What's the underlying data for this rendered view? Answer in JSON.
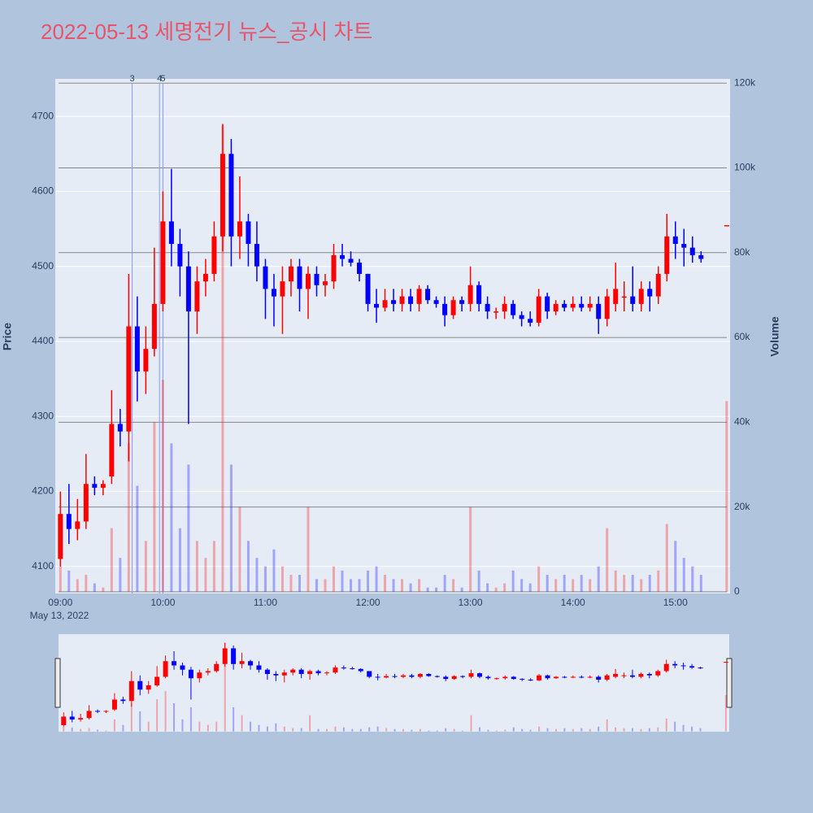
{
  "chart_data": {
    "type": "candlestick",
    "title": "2022-05-13 세명전기 뉴스_공시 차트",
    "x": [
      "09:00",
      "09:05",
      "09:10",
      "09:15",
      "09:20",
      "09:25",
      "09:30",
      "09:35",
      "09:40",
      "09:45",
      "09:50",
      "09:55",
      "10:00",
      "10:05",
      "10:10",
      "10:15",
      "10:20",
      "10:25",
      "10:30",
      "10:35",
      "10:40",
      "10:45",
      "10:50",
      "10:55",
      "11:00",
      "11:05",
      "11:10",
      "11:15",
      "11:20",
      "11:25",
      "11:30",
      "11:35",
      "11:40",
      "11:45",
      "11:50",
      "11:55",
      "12:00",
      "12:05",
      "12:10",
      "12:15",
      "12:20",
      "12:25",
      "12:30",
      "12:35",
      "12:40",
      "12:45",
      "12:50",
      "12:55",
      "13:00",
      "13:05",
      "13:10",
      "13:15",
      "13:20",
      "13:25",
      "13:30",
      "13:35",
      "13:40",
      "13:45",
      "13:50",
      "13:55",
      "14:00",
      "14:05",
      "14:10",
      "14:15",
      "14:20",
      "14:25",
      "14:30",
      "14:35",
      "14:40",
      "14:45",
      "14:50",
      "14:55",
      "15:00",
      "15:05",
      "15:10",
      "15:15",
      "15:30"
    ],
    "open": [
      4110,
      4170,
      4150,
      4160,
      4210,
      4205,
      4220,
      4290,
      4280,
      4420,
      4360,
      4390,
      4450,
      4560,
      4530,
      4500,
      4440,
      4480,
      4490,
      4540,
      4650,
      4540,
      4560,
      4530,
      4500,
      4470,
      4460,
      4480,
      4500,
      4470,
      4490,
      4475,
      4480,
      4515,
      4510,
      4505,
      4490,
      4450,
      4445,
      4455,
      4450,
      4460,
      4450,
      4470,
      4455,
      4450,
      4435,
      4455,
      4450,
      4475,
      4450,
      4440,
      4440,
      4450,
      4435,
      4430,
      4425,
      4460,
      4440,
      4450,
      4445,
      4450,
      4445,
      4450,
      4430,
      4450,
      4460,
      4460,
      4450,
      4470,
      4460,
      4490,
      4540,
      4530,
      4525,
      4515,
      4555
    ],
    "high": [
      4200,
      4210,
      4190,
      4250,
      4220,
      4215,
      4335,
      4310,
      4490,
      4460,
      4420,
      4525,
      4600,
      4630,
      4550,
      4520,
      4500,
      4510,
      4560,
      4690,
      4670,
      4620,
      4570,
      4560,
      4510,
      4490,
      4500,
      4510,
      4510,
      4500,
      4500,
      4490,
      4530,
      4530,
      4520,
      4510,
      4490,
      4470,
      4470,
      4470,
      4470,
      4470,
      4475,
      4475,
      4460,
      4460,
      4460,
      4460,
      4500,
      4480,
      4460,
      4445,
      4460,
      4455,
      4440,
      4440,
      4470,
      4465,
      4455,
      4455,
      4460,
      4460,
      4460,
      4460,
      4470,
      4505,
      4480,
      4500,
      4480,
      4480,
      4500,
      4570,
      4560,
      4550,
      4540,
      4520,
      4555
    ],
    "low": [
      4100,
      4130,
      4135,
      4150,
      4195,
      4195,
      4210,
      4260,
      4240,
      4320,
      4330,
      4380,
      4440,
      4500,
      4460,
      4290,
      4410,
      4460,
      4480,
      4520,
      4500,
      4510,
      4500,
      4480,
      4430,
      4420,
      4410,
      4460,
      4440,
      4430,
      4460,
      4460,
      4470,
      4500,
      4500,
      4480,
      4440,
      4425,
      4440,
      4440,
      4440,
      4440,
      4440,
      4450,
      4445,
      4420,
      4430,
      4440,
      4440,
      4440,
      4430,
      4430,
      4430,
      4430,
      4420,
      4420,
      4420,
      4430,
      4435,
      4440,
      4440,
      4440,
      4440,
      4410,
      4420,
      4440,
      4440,
      4440,
      4440,
      4440,
      4450,
      4480,
      4510,
      4500,
      4505,
      4505,
      4555
    ],
    "close": [
      4170,
      4150,
      4160,
      4210,
      4205,
      4210,
      4290,
      4280,
      4420,
      4360,
      4390,
      4450,
      4560,
      4530,
      4500,
      4440,
      4480,
      4490,
      4540,
      4650,
      4540,
      4560,
      4530,
      4500,
      4470,
      4460,
      4480,
      4500,
      4470,
      4490,
      4475,
      4480,
      4515,
      4510,
      4505,
      4490,
      4450,
      4445,
      4455,
      4450,
      4460,
      4450,
      4470,
      4455,
      4450,
      4435,
      4455,
      4450,
      4475,
      4450,
      4440,
      4440,
      4450,
      4435,
      4430,
      4425,
      4460,
      4440,
      4450,
      4445,
      4450,
      4445,
      4450,
      4430,
      4460,
      4470,
      4460,
      4450,
      4470,
      4460,
      4490,
      4540,
      4530,
      4525,
      4515,
      4510,
      4555
    ],
    "volume": [
      6000,
      5000,
      3000,
      4000,
      2000,
      1000,
      15000,
      8000,
      35000,
      25000,
      12000,
      40000,
      50000,
      35000,
      15000,
      30000,
      12000,
      8000,
      12000,
      110000,
      30000,
      20000,
      12000,
      8000,
      6000,
      10000,
      6000,
      4000,
      4000,
      20000,
      3000,
      3000,
      6000,
      5000,
      3000,
      3000,
      5000,
      6000,
      4000,
      3000,
      3000,
      2000,
      3000,
      1000,
      1000,
      4000,
      3000,
      1000,
      20000,
      5000,
      2000,
      1000,
      2000,
      5000,
      3000,
      2000,
      6000,
      4000,
      3000,
      4000,
      3000,
      4000,
      3000,
      6000,
      15000,
      5000,
      4000,
      4000,
      3000,
      4000,
      5000,
      16000,
      12000,
      8000,
      6000,
      4000,
      45000
    ],
    "increasing_color": "#ff0000",
    "decreasing_color": "#0000ff",
    "xlim": [
      "08:57",
      "15:32"
    ],
    "xticks": [
      "09:00",
      "10:00",
      "11:00",
      "12:00",
      "13:00",
      "14:00",
      "15:00"
    ],
    "x_date_label": "May 13, 2022",
    "ylim": [
      4064,
      4750
    ],
    "yticks": [
      4100,
      4200,
      4300,
      4400,
      4500,
      4600,
      4700
    ],
    "y_label": "Price",
    "y2lim": [
      -400,
      121000
    ],
    "y2ticks": [
      0,
      {
        "value": 20000,
        "label": "20k"
      },
      {
        "value": 40000,
        "label": "40k"
      },
      {
        "value": 60000,
        "label": "60k"
      },
      {
        "value": 80000,
        "label": "80k"
      },
      {
        "value": 100000,
        "label": "100k"
      },
      {
        "value": 120000,
        "label": "120k"
      }
    ],
    "y2_label": "Volume",
    "annotations": [
      {
        "x": "09:42",
        "text": "3"
      },
      {
        "x": "09:58",
        "text": "4"
      },
      {
        "x": "10:00",
        "text": "5"
      }
    ],
    "annotation_color": "#8899ee",
    "grid": true,
    "rangeslider": true
  }
}
